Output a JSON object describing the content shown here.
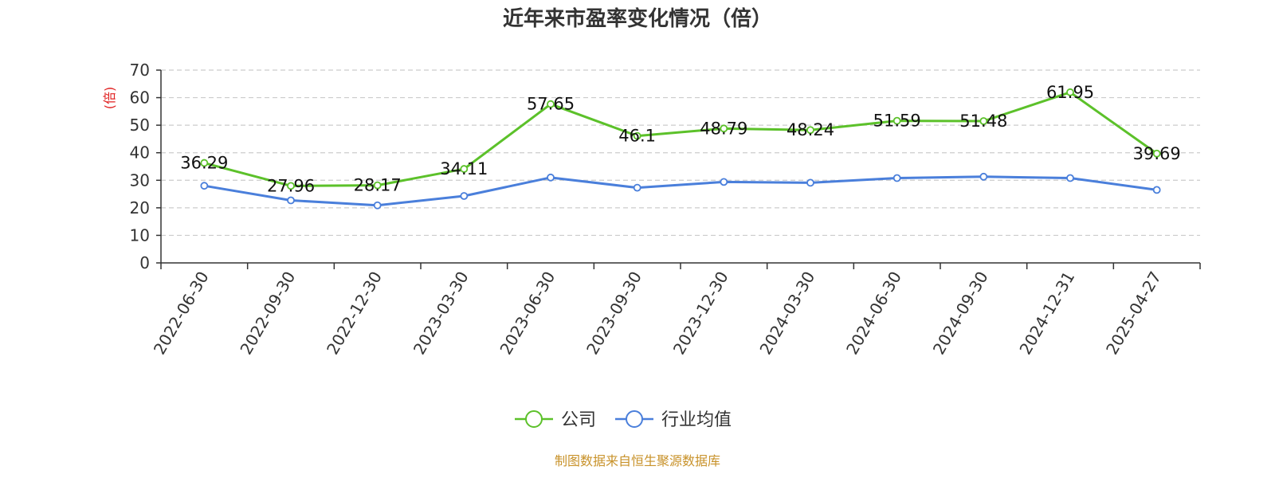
{
  "chart_data": {
    "type": "line",
    "title": "近年来市盈率变化情况（倍）",
    "ylabel": "(倍)",
    "xlabel": "",
    "ylim": [
      0,
      70
    ],
    "yticks": [
      0,
      10,
      20,
      30,
      40,
      50,
      60,
      70
    ],
    "grid": true,
    "legend_position": "bottom-center",
    "categories": [
      "2022-06-30",
      "2022-09-30",
      "2022-12-30",
      "2023-03-30",
      "2023-06-30",
      "2023-09-30",
      "2023-12-30",
      "2024-03-30",
      "2024-06-30",
      "2024-09-30",
      "2024-12-31",
      "2025-04-27"
    ],
    "series": [
      {
        "name": "公司",
        "color": "#5cc12a",
        "show_labels": true,
        "values": [
          36.29,
          27.96,
          28.17,
          34.11,
          57.65,
          46.1,
          48.79,
          48.24,
          51.59,
          51.48,
          61.95,
          39.69
        ]
      },
      {
        "name": "行业均值",
        "color": "#4a7fdb",
        "show_labels": false,
        "values": [
          28.0,
          22.7,
          20.9,
          24.3,
          31.0,
          27.3,
          29.4,
          29.1,
          30.8,
          31.3,
          30.8,
          26.5
        ]
      }
    ]
  },
  "colors": {
    "ylabel": "#e02020",
    "source": "#c8922a",
    "grid": "#cccccc",
    "axis": "#333333"
  },
  "source_text": "制图数据来自恒生聚源数据库"
}
